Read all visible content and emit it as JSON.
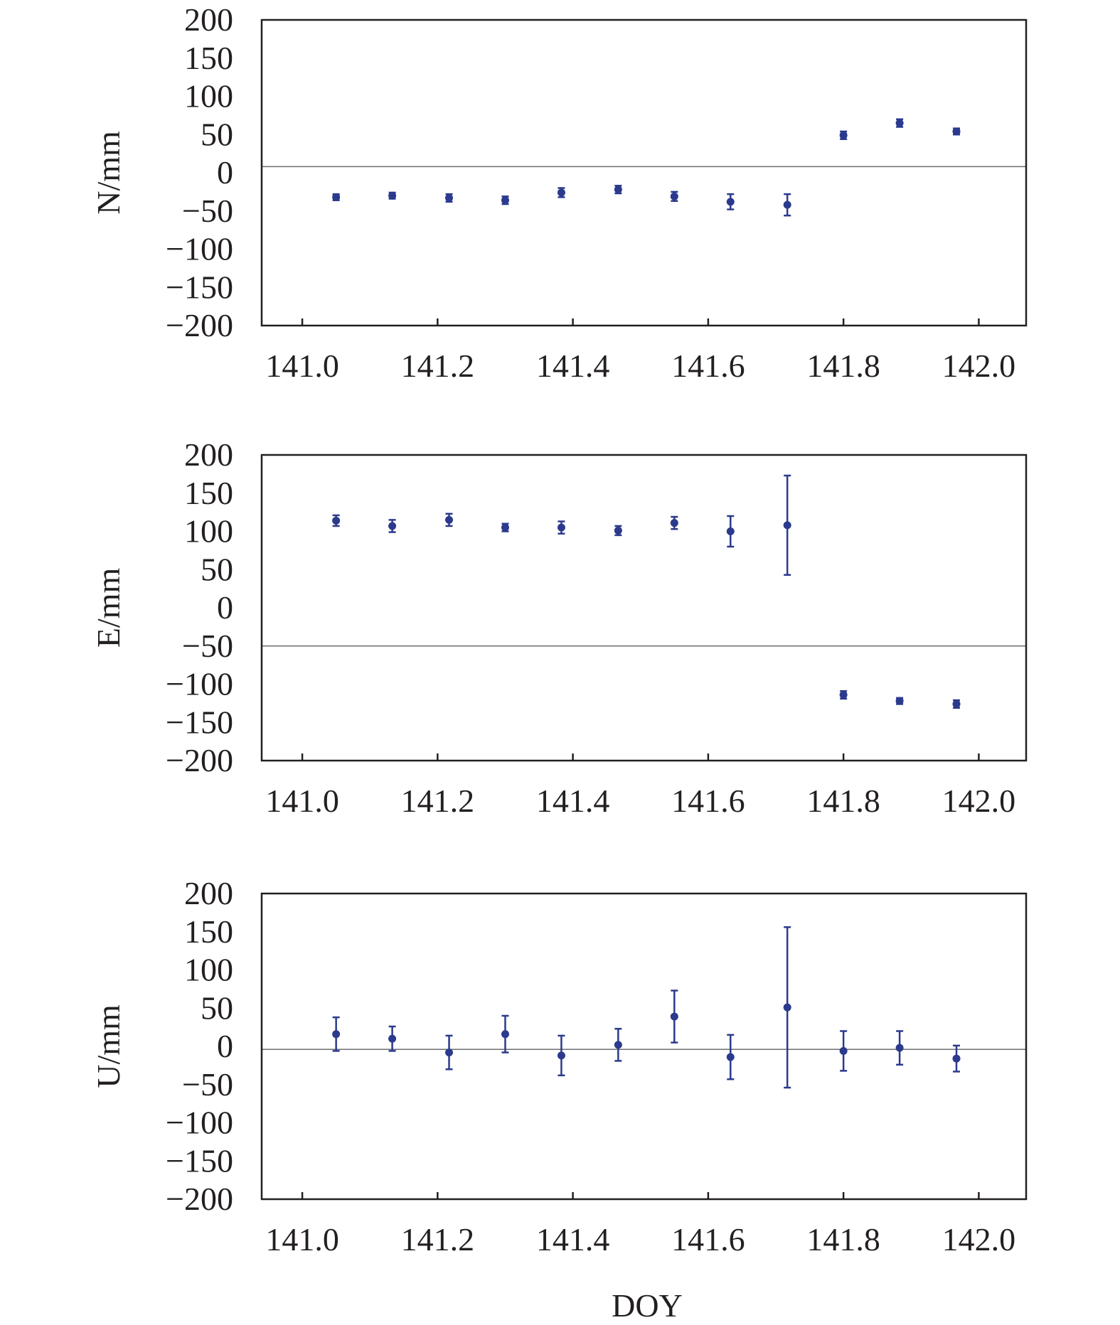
{
  "chart_data": [
    {
      "type": "scatter",
      "panel": "north",
      "ylabel": "N/mm",
      "xlabel": "",
      "xlim": [
        140.94,
        142.07
      ],
      "ylim": [
        -200,
        200
      ],
      "yticks": [
        "200",
        "150",
        "100",
        "50",
        "0",
        "−50",
        "−100",
        "−150",
        "−200"
      ],
      "xticks": [
        "141.0",
        "141.2",
        "141.4",
        "141.6",
        "141.8",
        "142.0"
      ],
      "reference_line": 8,
      "x": [
        141.05,
        141.133,
        141.217,
        141.3,
        141.383,
        141.467,
        141.55,
        141.633,
        141.717,
        141.8,
        141.883,
        141.967
      ],
      "y": [
        -32,
        -30,
        -33,
        -36,
        -26,
        -22,
        -31,
        -38,
        -42,
        49,
        65,
        54
      ],
      "err": [
        4,
        4,
        5,
        5,
        6,
        5,
        6,
        10,
        14,
        5,
        5,
        4
      ]
    },
    {
      "type": "scatter",
      "panel": "east",
      "ylabel": "E/mm",
      "xlabel": "",
      "xlim": [
        140.94,
        142.07
      ],
      "ylim": [
        -200,
        200
      ],
      "yticks": [
        "200",
        "150",
        "100",
        "50",
        "0",
        "−50",
        "−100",
        "−150",
        "−200"
      ],
      "xticks": [
        "141.0",
        "141.2",
        "141.4",
        "141.6",
        "141.8",
        "142.0"
      ],
      "reference_line": -50,
      "x": [
        141.05,
        141.133,
        141.217,
        141.3,
        141.383,
        141.467,
        141.55,
        141.633,
        141.717,
        141.8,
        141.883,
        141.967
      ],
      "y": [
        114,
        107,
        115,
        105,
        105,
        101,
        111,
        100,
        108,
        -114,
        -122,
        -126
      ],
      "err": [
        7,
        8,
        8,
        5,
        8,
        6,
        8,
        20,
        65,
        5,
        4,
        5
      ]
    },
    {
      "type": "scatter",
      "panel": "up",
      "ylabel": "U/mm",
      "xlabel": "DOY",
      "xlim": [
        140.94,
        142.07
      ],
      "ylim": [
        -200,
        200
      ],
      "yticks": [
        "200",
        "150",
        "100",
        "50",
        "0",
        "−50",
        "−100",
        "−150",
        "−200"
      ],
      "xticks": [
        "141.0",
        "141.2",
        "141.4",
        "141.6",
        "141.8",
        "142.0"
      ],
      "reference_line": -4,
      "x": [
        141.05,
        141.133,
        141.217,
        141.3,
        141.383,
        141.467,
        141.55,
        141.633,
        141.717,
        141.8,
        141.883,
        141.967
      ],
      "y": [
        16,
        10,
        -8,
        16,
        -12,
        2,
        39,
        -14,
        51,
        -6,
        -2,
        -16
      ],
      "err": [
        22,
        16,
        22,
        24,
        26,
        21,
        34,
        29,
        105,
        26,
        22,
        17
      ]
    }
  ]
}
